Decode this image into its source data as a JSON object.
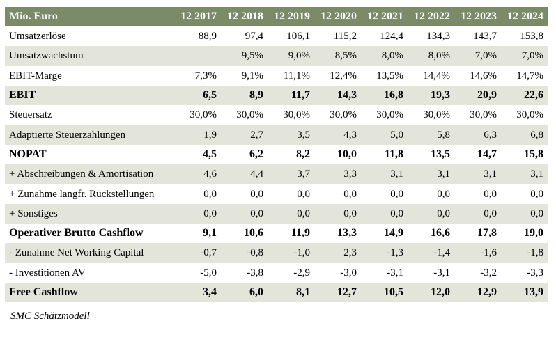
{
  "table": {
    "header_label": "Mio. Euro",
    "years": [
      "12 2017",
      "12 2018",
      "12 2019",
      "12 2020",
      "12 2021",
      "12 2022",
      "12 2023",
      "12 2024"
    ],
    "rows": [
      {
        "label": "Umsatzerlöse",
        "values": [
          "88,9",
          "97,4",
          "106,1",
          "115,2",
          "124,4",
          "134,3",
          "143,7",
          "153,8"
        ],
        "bold": false,
        "shade": false
      },
      {
        "label": "Umsatzwachstum",
        "values": [
          "",
          "9,5%",
          "9,0%",
          "8,5%",
          "8,0%",
          "8,0%",
          "7,0%",
          "7,0%"
        ],
        "bold": false,
        "shade": true
      },
      {
        "label": "EBIT-Marge",
        "values": [
          "7,3%",
          "9,1%",
          "11,1%",
          "12,4%",
          "13,5%",
          "14,4%",
          "14,6%",
          "14,7%"
        ],
        "bold": false,
        "shade": false
      },
      {
        "label": "EBIT",
        "values": [
          "6,5",
          "8,9",
          "11,7",
          "14,3",
          "16,8",
          "19,3",
          "20,9",
          "22,6"
        ],
        "bold": true,
        "shade": true
      },
      {
        "label": "Steuersatz",
        "values": [
          "30,0%",
          "30,0%",
          "30,0%",
          "30,0%",
          "30,0%",
          "30,0%",
          "30,0%",
          "30,0%"
        ],
        "bold": false,
        "shade": false
      },
      {
        "label": "Adaptierte Steuerzahlungen",
        "values": [
          "1,9",
          "2,7",
          "3,5",
          "4,3",
          "5,0",
          "5,8",
          "6,3",
          "6,8"
        ],
        "bold": false,
        "shade": true
      },
      {
        "label": "NOPAT",
        "values": [
          "4,5",
          "6,2",
          "8,2",
          "10,0",
          "11,8",
          "13,5",
          "14,7",
          "15,8"
        ],
        "bold": true,
        "shade": false
      },
      {
        "label": "+ Abschreibungen & Amortisation",
        "values": [
          "4,6",
          "4,4",
          "3,7",
          "3,3",
          "3,1",
          "3,1",
          "3,1",
          "3,1"
        ],
        "bold": false,
        "shade": true
      },
      {
        "label": "+ Zunahme langfr. Rückstellungen",
        "values": [
          "0,0",
          "0,0",
          "0,0",
          "0,0",
          "0,0",
          "0,0",
          "0,0",
          "0,0"
        ],
        "bold": false,
        "shade": false
      },
      {
        "label": "+ Sonstiges",
        "values": [
          "0,0",
          "0,0",
          "0,0",
          "0,0",
          "0,0",
          "0,0",
          "0,0",
          "0,0"
        ],
        "bold": false,
        "shade": true
      },
      {
        "label": "Operativer Brutto Cashflow",
        "values": [
          "9,1",
          "10,6",
          "11,9",
          "13,3",
          "14,9",
          "16,6",
          "17,8",
          "19,0"
        ],
        "bold": true,
        "shade": false
      },
      {
        "label": "- Zunahme Net Working Capital",
        "values": [
          "-0,7",
          "-0,8",
          "-1,0",
          "2,3",
          "-1,3",
          "-1,4",
          "-1,6",
          "-1,8"
        ],
        "bold": false,
        "shade": true
      },
      {
        "label": "- Investitionen AV",
        "values": [
          "-5,0",
          "-3,8",
          "-2,9",
          "-3,0",
          "-3,1",
          "-3,1",
          "-3,2",
          "-3,3"
        ],
        "bold": false,
        "shade": false
      },
      {
        "label": "Free Cashflow",
        "values": [
          "3,4",
          "6,0",
          "8,1",
          "12,7",
          "10,5",
          "12,0",
          "12,9",
          "13,9"
        ],
        "bold": true,
        "shade": true
      }
    ]
  },
  "source_note": "SMC Schätzmodell"
}
